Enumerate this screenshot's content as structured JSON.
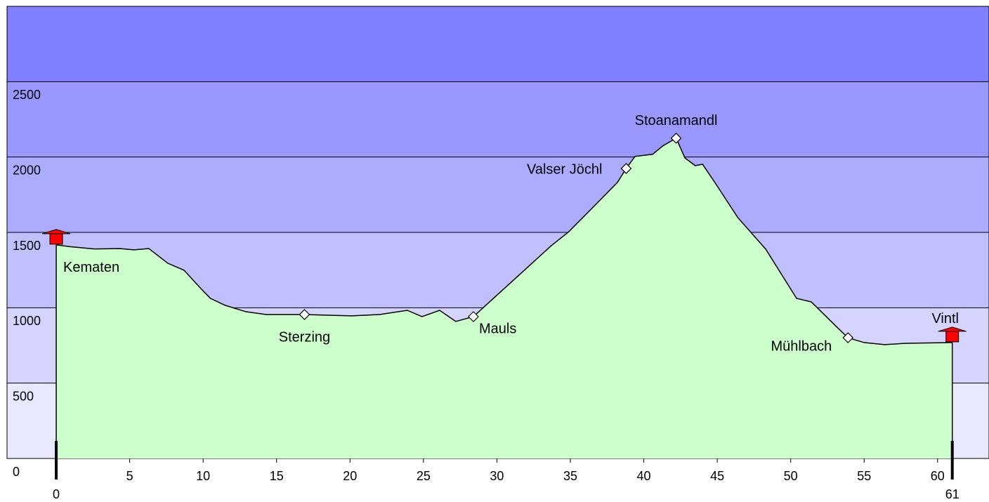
{
  "chart_data": {
    "type": "area",
    "x": [
      0,
      0.96,
      2.6,
      4.3,
      5.3,
      6.3,
      7.6,
      8.7,
      9.8,
      10.5,
      11.5,
      12.9,
      14.3,
      16.9,
      20.1,
      22.0,
      23.9,
      24.9,
      26.1,
      27.2,
      28.4,
      29.6,
      31.5,
      33.7,
      34.9,
      36.8,
      38.2,
      38.8,
      39.4,
      40.6,
      41.3,
      42.2,
      42.8,
      43.5,
      44.0,
      44.9,
      46.4,
      48.3,
      50.4,
      51.4,
      53.1,
      53.9,
      55.0,
      56.4,
      57.8,
      61.0
    ],
    "values": [
      1417,
      1405,
      1390,
      1393,
      1384,
      1393,
      1295,
      1249,
      1132,
      1062,
      1016,
      974,
      955,
      955,
      946,
      955,
      983,
      941,
      983,
      909,
      941,
      1048,
      1216,
      1412,
      1505,
      1692,
      1831,
      1924,
      2004,
      2018,
      2074,
      2125,
      1994,
      1943,
      1952,
      1822,
      1598,
      1389,
      1062,
      1039,
      876,
      801,
      769,
      755,
      764,
      769
    ],
    "color": "#ccffcc",
    "line_color": "#000000",
    "xlim": [
      -3.35,
      63.5
    ],
    "ylim": [
      0,
      3000
    ],
    "xticks": [
      5,
      10,
      15,
      20,
      25,
      30,
      35,
      40,
      45,
      50,
      55,
      60
    ],
    "yticks": [
      0,
      500,
      1000,
      1500,
      2000,
      2500
    ],
    "end_ticks": [
      0,
      61
    ],
    "band_colors": [
      "#e8e8ff",
      "#d4d4ff",
      "#c0c0ff",
      "#acacff",
      "#9898ff",
      "#8080ff"
    ],
    "waypoints": [
      {
        "name": "Kematen",
        "x": 0,
        "elevation": 1417,
        "symbol": "house"
      },
      {
        "name": "Sterzing",
        "x": 16.9,
        "elevation": 955,
        "symbol": "diamond"
      },
      {
        "name": "Mauls",
        "x": 28.4,
        "elevation": 941,
        "symbol": "diamond"
      },
      {
        "name": "Valser Jöchl",
        "x": 38.8,
        "elevation": 1924,
        "symbol": "diamond"
      },
      {
        "name": "Stoanamandl",
        "x": 42.2,
        "elevation": 2125,
        "symbol": "diamond"
      },
      {
        "name": "Mühlbach",
        "x": 53.9,
        "elevation": 801,
        "symbol": "diamond"
      },
      {
        "name": "Vintl",
        "x": 61.0,
        "elevation": 769,
        "symbol": "house"
      }
    ]
  }
}
